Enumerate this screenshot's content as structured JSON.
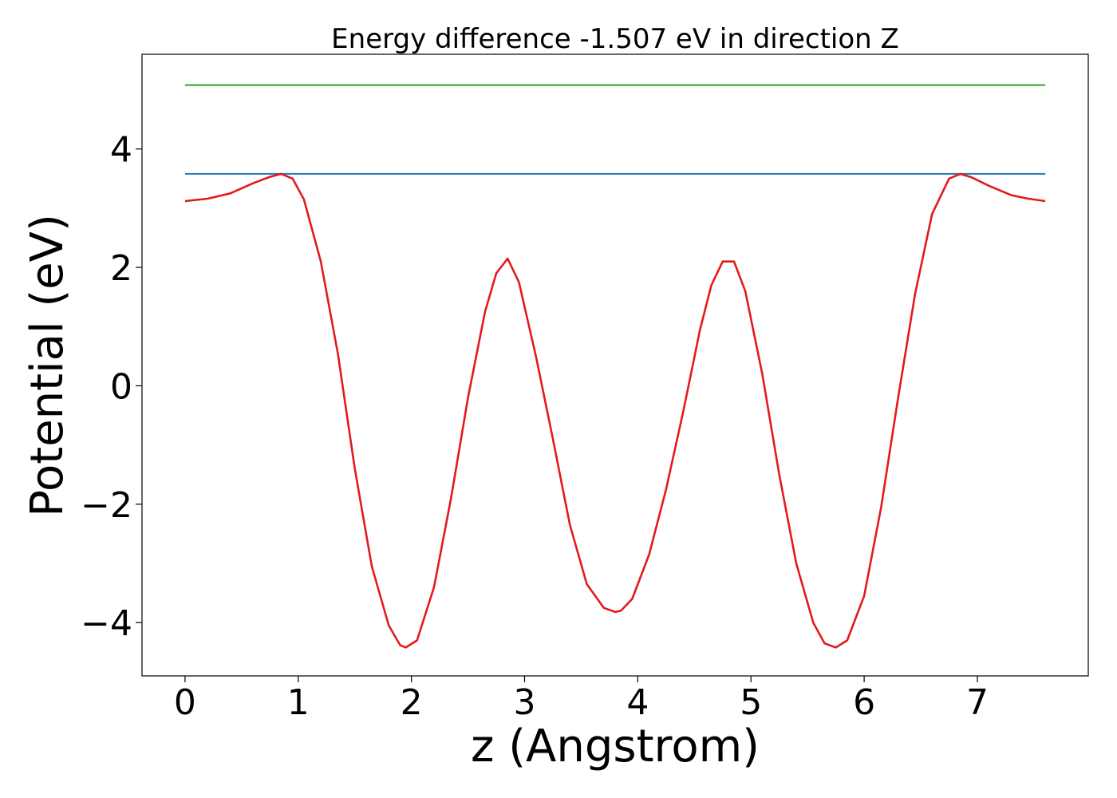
{
  "chart_data": {
    "type": "line",
    "title": "Energy difference -1.507 eV in direction Z",
    "xlabel": "z (Angstrom)",
    "ylabel": "Potential (eV)",
    "xlim": [
      -0.38,
      7.98
    ],
    "ylim": [
      -4.9,
      5.6
    ],
    "xticks": [
      0,
      1,
      2,
      3,
      4,
      5,
      6,
      7
    ],
    "xtick_labels": [
      "0",
      "1",
      "2",
      "3",
      "4",
      "5",
      "6",
      "7"
    ],
    "yticks": [
      -4,
      -2,
      0,
      2,
      4
    ],
    "ytick_labels": [
      "−4",
      "−2",
      "0",
      "2",
      "4"
    ],
    "grid": false,
    "legend": "none",
    "series": [
      {
        "color": "#2ca02c",
        "x": [
          0,
          7.6
        ],
        "y": [
          5.08,
          5.08
        ]
      },
      {
        "color": "#1f77b4",
        "x": [
          0,
          7.6
        ],
        "y": [
          3.58,
          3.58
        ]
      },
      {
        "color": "#e31a1c",
        "x": [
          0,
          0.2,
          0.4,
          0.6,
          0.75,
          0.85,
          0.95,
          1.05,
          1.2,
          1.35,
          1.5,
          1.65,
          1.8,
          1.9,
          1.95,
          2.05,
          2.2,
          2.35,
          2.5,
          2.65,
          2.75,
          2.85,
          2.95,
          3.1,
          3.25,
          3.4,
          3.55,
          3.7,
          3.8,
          3.85,
          3.95,
          4.1,
          4.25,
          4.4,
          4.55,
          4.65,
          4.75,
          4.85,
          4.95,
          5.1,
          5.25,
          5.4,
          5.55,
          5.65,
          5.75,
          5.85,
          6.0,
          6.15,
          6.3,
          6.45,
          6.6,
          6.75,
          6.85,
          6.95,
          7.1,
          7.3,
          7.45,
          7.6
        ],
        "y": [
          3.12,
          3.16,
          3.25,
          3.42,
          3.53,
          3.58,
          3.5,
          3.15,
          2.1,
          0.55,
          -1.4,
          -3.05,
          -4.05,
          -4.38,
          -4.42,
          -4.3,
          -3.4,
          -1.9,
          -0.2,
          1.25,
          1.9,
          2.15,
          1.75,
          0.5,
          -0.9,
          -2.35,
          -3.35,
          -3.75,
          -3.82,
          -3.8,
          -3.6,
          -2.85,
          -1.75,
          -0.45,
          0.95,
          1.7,
          2.1,
          2.1,
          1.6,
          0.2,
          -1.5,
          -3.0,
          -4.0,
          -4.35,
          -4.42,
          -4.3,
          -3.55,
          -2.05,
          -0.2,
          1.55,
          2.9,
          3.5,
          3.58,
          3.52,
          3.38,
          3.22,
          3.16,
          3.12
        ]
      }
    ]
  }
}
